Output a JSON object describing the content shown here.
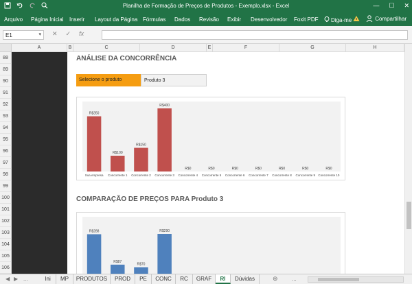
{
  "window": {
    "title": "Planilha de Formação de Preços de Produtos - Exemplo.xlsx - Excel",
    "controls": [
      "—",
      "☐",
      "✕"
    ]
  },
  "ribbon": {
    "tabs": [
      "Arquivo",
      "Página Inicial",
      "Inserir",
      "Layout da Página",
      "Fórmulas",
      "Dados",
      "Revisão",
      "Exibir",
      "Desenvolvedor",
      "Foxit PDF",
      "Diga-me"
    ],
    "share_label": "Compartilhar"
  },
  "formula_bar": {
    "name_box": "E1",
    "buttons": [
      "✕",
      "✓",
      "fx"
    ],
    "value": ""
  },
  "columns": [
    "A",
    "B",
    "C",
    "D",
    "E",
    "F",
    "G",
    "H"
  ],
  "rows": [
    "88",
    "89",
    "90",
    "91",
    "92",
    "93",
    "94",
    "95",
    "96",
    "97",
    "98",
    "99",
    "100",
    "101",
    "102",
    "103",
    "104",
    "105",
    "106"
  ],
  "section1": {
    "heading": "ANÁLISE DA CONCORRÊNCIA",
    "select_label": "Selecione o produto",
    "select_value": "Produto 3"
  },
  "section2": {
    "heading": "COMPARAÇÃO DE PREÇOS PARA Produto 3"
  },
  "chart_data": [
    {
      "type": "bar",
      "color": "#c0504d",
      "categories": [
        "Sua empresa",
        "Concorrente 1",
        "Concorrente 2",
        "Concorrente 3",
        "Concorrente 4",
        "Concorrente 5",
        "Concorrente 6",
        "Concorrente 7",
        "Concorrente 8",
        "Concorrente 9",
        "Concorrente 10"
      ],
      "values": [
        350,
        100,
        150,
        400,
        0,
        0,
        0,
        0,
        0,
        0,
        0
      ],
      "labels": [
        "R$350",
        "R$100",
        "R$150",
        "R$400",
        "R$0",
        "R$0",
        "R$0",
        "R$0",
        "R$0",
        "R$0",
        "R$0"
      ],
      "ylim": [
        0,
        400
      ]
    },
    {
      "type": "bar",
      "color": "#4f81bd",
      "categories": [
        "Sua empresa",
        "Concorrente 1",
        "Concorrente 2",
        "Concorrente 3"
      ],
      "values": [
        288,
        87,
        70,
        290
      ],
      "labels": [
        "R$288",
        "R$87",
        "R$70",
        "R$290"
      ],
      "ylim": [
        0,
        290
      ]
    }
  ],
  "sheet_tabs": [
    "Ini",
    "MP",
    "PRODUTOS",
    "PROD",
    "PE",
    "CONC",
    "RC",
    "GRAF",
    "RI",
    "Dúvidas"
  ],
  "active_sheet": "RI",
  "tab_nav": [
    "◀",
    "▶",
    "...",
    "⊕",
    "..."
  ]
}
